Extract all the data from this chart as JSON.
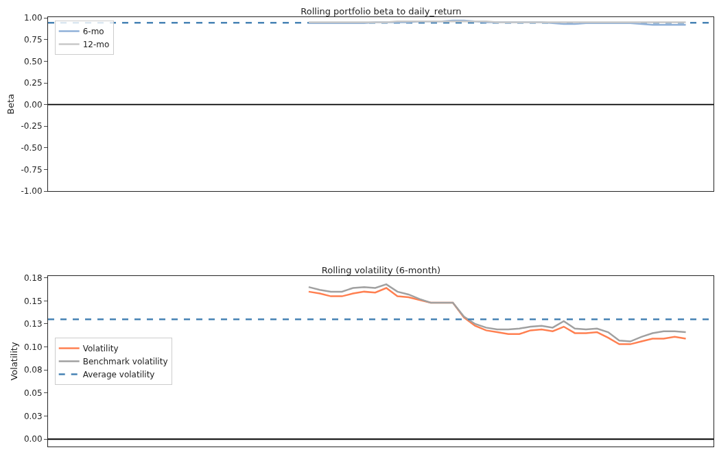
{
  "chart_data": [
    {
      "type": "line",
      "title": "Rolling portfolio beta to daily_return",
      "ylabel": "Beta",
      "categories": [
        null,
        null,
        null,
        null,
        null,
        null,
        null,
        null,
        null,
        null,
        null,
        null,
        null,
        null,
        null,
        null,
        null,
        null,
        null,
        null,
        null,
        null,
        null,
        null,
        null,
        null,
        null,
        null,
        null,
        null,
        null,
        null,
        null,
        null,
        null,
        null,
        null,
        null,
        null,
        null,
        null,
        null,
        null,
        null,
        null,
        null,
        null,
        null,
        null,
        null,
        null,
        null,
        null,
        null,
        null,
        null,
        null,
        null,
        null,
        null
      ],
      "series": [
        {
          "name": "6-mo",
          "color": "#8fb0d8",
          "values": [
            null,
            null,
            null,
            null,
            null,
            null,
            null,
            null,
            null,
            null,
            null,
            null,
            null,
            null,
            null,
            null,
            null,
            null,
            null,
            null,
            null,
            null,
            null,
            0.94,
            0.94,
            0.94,
            0.94,
            0.94,
            0.94,
            0.95,
            0.95,
            0.95,
            0.95,
            0.96,
            0.96,
            0.96,
            0.97,
            0.97,
            0.96,
            0.95,
            0.95,
            0.95,
            0.95,
            0.95,
            0.95,
            0.94,
            0.93,
            0.93,
            0.94,
            0.94,
            0.94,
            0.94,
            0.94,
            0.93,
            0.92,
            0.92,
            0.92,
            0.92,
            null,
            null
          ]
        },
        {
          "name": "12-mo",
          "color": "#c8c8c8",
          "values": [
            null,
            null,
            null,
            null,
            null,
            null,
            null,
            null,
            null,
            null,
            null,
            null,
            null,
            null,
            null,
            null,
            null,
            null,
            null,
            null,
            null,
            null,
            null,
            0.95,
            0.95,
            0.95,
            0.95,
            0.95,
            0.95,
            0.95,
            0.95,
            0.96,
            0.96,
            0.96,
            0.96,
            0.96,
            0.96,
            0.96,
            0.96,
            0.96,
            0.95,
            0.95,
            0.95,
            0.95,
            0.95,
            0.95,
            0.95,
            0.95,
            0.95,
            0.95,
            0.95,
            0.95,
            0.95,
            0.95,
            0.95,
            0.95,
            0.95,
            0.95,
            null,
            null
          ]
        }
      ],
      "ylim": [
        -1.0,
        1.01
      ],
      "yticks": [
        {
          "value": -1,
          "label": "-1.00"
        },
        {
          "value": -0.75,
          "label": "-0.75"
        },
        {
          "value": -0.5,
          "label": "-0.50"
        },
        {
          "value": -0.25,
          "label": "-0.25"
        },
        {
          "value": 0,
          "label": "0.00"
        },
        {
          "value": 0.25,
          "label": "0.25"
        },
        {
          "value": 0.5,
          "label": "0.50"
        },
        {
          "value": 0.75,
          "label": "0.75"
        },
        {
          "value": 1,
          "label": "1.00"
        }
      ],
      "ref_lines": [
        {
          "axis": "y",
          "value": 0.944,
          "color": "#4682b4",
          "line_style": "dashed"
        },
        {
          "axis": "y",
          "value": 0,
          "color": "#000000",
          "line_style": "solid"
        }
      ],
      "legend": "top left",
      "grid": false,
      "tick_labels": "y",
      "line_style": "solid",
      "marker": "none"
    },
    {
      "type": "line",
      "title": "Rolling volatility (6-month)",
      "ylabel": "Volatility",
      "categories": [
        null,
        null,
        null,
        null,
        null,
        null,
        null,
        null,
        null,
        null,
        null,
        null,
        null,
        null,
        null,
        null,
        null,
        null,
        null,
        null,
        null,
        null,
        null,
        null,
        null,
        null,
        null,
        null,
        null,
        null,
        null,
        null,
        null,
        null,
        null,
        null,
        null,
        null,
        null,
        null,
        null,
        null,
        null,
        null,
        null,
        null,
        null,
        null,
        null,
        null,
        null,
        null,
        null,
        null,
        null,
        null,
        null,
        null,
        null,
        null
      ],
      "series": [
        {
          "name": "Volatility",
          "color": "#ff7f50",
          "values": [
            null,
            null,
            null,
            null,
            null,
            null,
            null,
            null,
            null,
            null,
            null,
            null,
            null,
            null,
            null,
            null,
            null,
            null,
            null,
            null,
            null,
            null,
            null,
            0.16,
            0.158,
            0.155,
            0.155,
            0.158,
            0.16,
            0.159,
            0.164,
            0.155,
            0.154,
            0.151,
            0.148,
            0.148,
            0.148,
            0.132,
            0.123,
            0.118,
            0.116,
            0.114,
            0.114,
            0.118,
            0.119,
            0.117,
            0.122,
            0.115,
            0.115,
            0.116,
            0.11,
            0.103,
            0.103,
            0.106,
            0.109,
            0.109,
            0.111,
            0.109,
            null,
            null
          ]
        },
        {
          "name": "Benchmark volatility",
          "color": "#a0a0a0",
          "values": [
            null,
            null,
            null,
            null,
            null,
            null,
            null,
            null,
            null,
            null,
            null,
            null,
            null,
            null,
            null,
            null,
            null,
            null,
            null,
            null,
            null,
            null,
            null,
            0.165,
            0.162,
            0.16,
            0.16,
            0.164,
            0.165,
            0.164,
            0.168,
            0.16,
            0.157,
            0.152,
            0.148,
            0.148,
            0.148,
            0.133,
            0.125,
            0.121,
            0.119,
            0.119,
            0.12,
            0.122,
            0.123,
            0.121,
            0.128,
            0.12,
            0.119,
            0.12,
            0.116,
            0.107,
            0.106,
            0.111,
            0.115,
            0.117,
            0.117,
            0.116,
            null,
            null
          ]
        }
      ],
      "ylim": [
        -0.008,
        0.177
      ],
      "yticks": [
        {
          "value": 0,
          "label": "0.00"
        },
        {
          "value": 0.025,
          "label": "0.03"
        },
        {
          "value": 0.05,
          "label": "0.05"
        },
        {
          "value": 0.075,
          "label": "0.08"
        },
        {
          "value": 0.1,
          "label": "0.10"
        },
        {
          "value": 0.125,
          "label": "0.13"
        },
        {
          "value": 0.15,
          "label": "0.15"
        },
        {
          "value": 0.175,
          "label": "0.18"
        }
      ],
      "ref_lines": [
        {
          "axis": "y",
          "value": 0.13,
          "label": "Average volatility",
          "color": "#4682b4",
          "line_style": "dashed"
        },
        {
          "axis": "y",
          "value": 0,
          "color": "#000000",
          "line_style": "solid"
        }
      ],
      "legend": "left",
      "grid": false,
      "tick_labels": "y",
      "line_style": "solid",
      "marker": "none"
    }
  ]
}
